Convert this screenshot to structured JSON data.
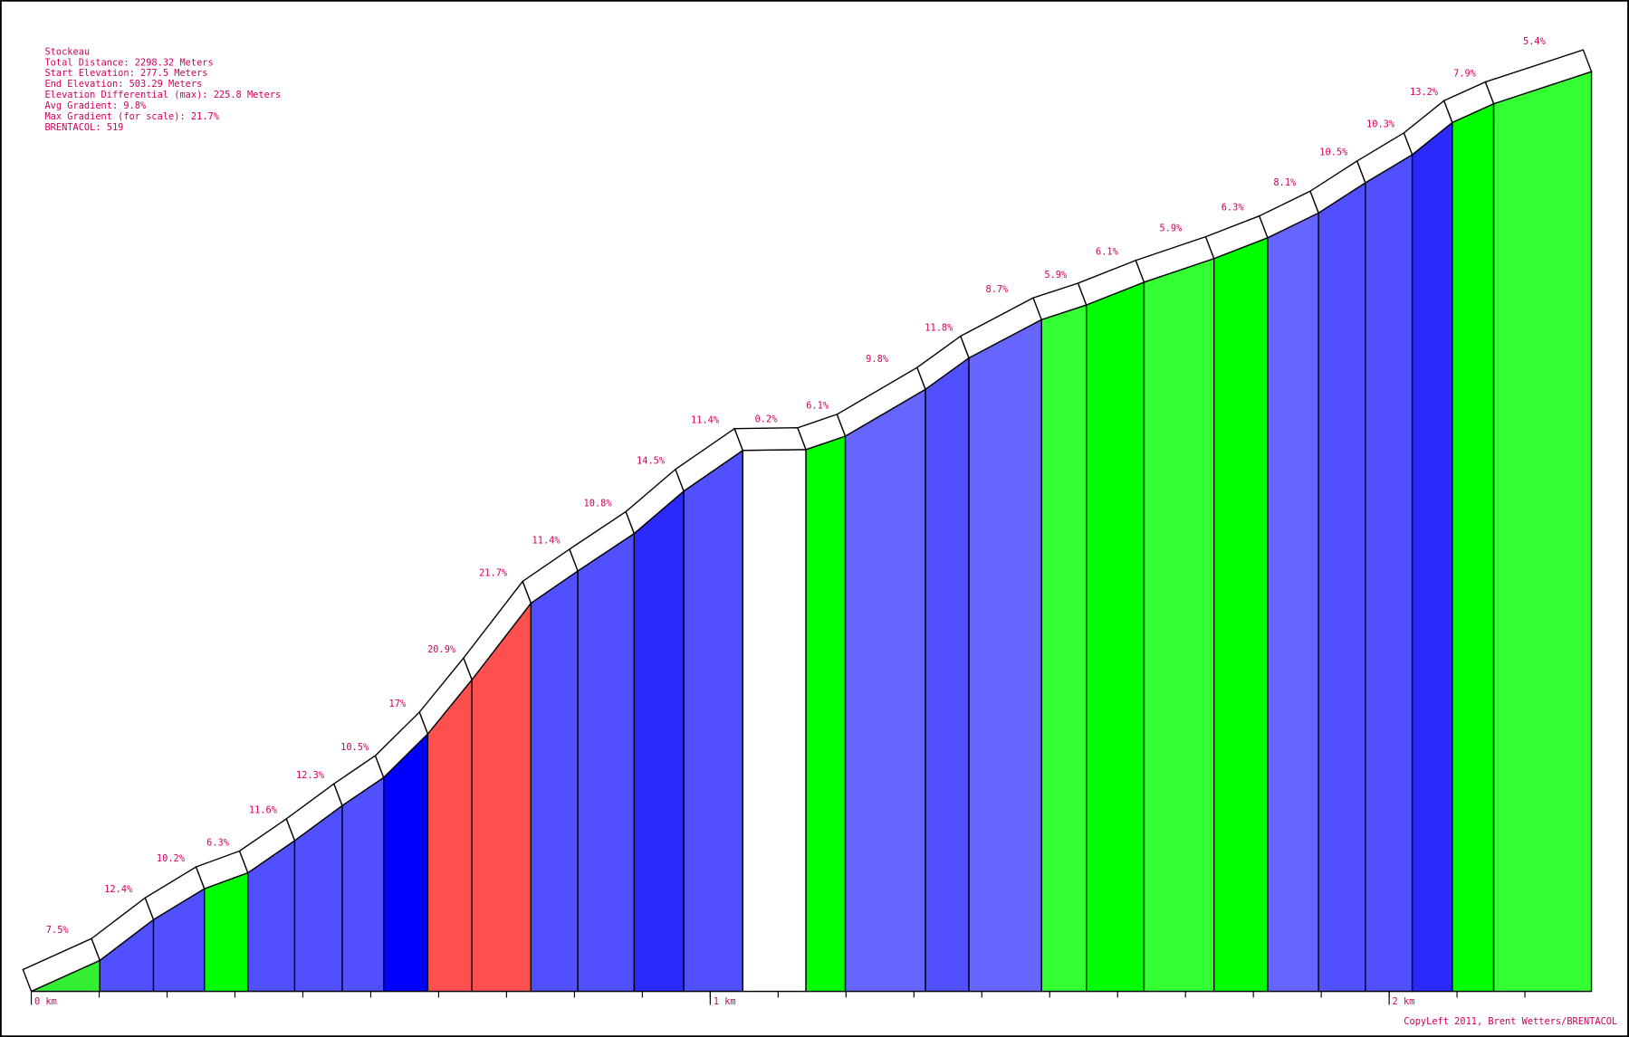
{
  "chart_data": {
    "type": "profile",
    "title": "Stockeau",
    "info": [
      "Total Distance: 2298.32 Meters",
      "Start Elevation: 277.5 Meters",
      "End Elevation: 503.29 Meters",
      "Elevation Differential (max): 225.8 Meters",
      "Avg Gradient: 9.8%",
      "Max Gradient (for scale): 21.7%",
      "BRENTACOL: 519"
    ],
    "x": [
      0,
      0.101,
      0.18,
      0.255,
      0.319,
      0.388,
      0.458,
      0.519,
      0.584,
      0.649,
      0.736,
      0.805,
      0.888,
      0.961,
      1.048,
      1.141,
      1.199,
      1.317,
      1.381,
      1.488,
      1.554,
      1.639,
      1.742,
      1.821,
      1.896,
      1.965,
      2.034,
      2.093,
      2.154,
      2.298
    ],
    "values": [
      277.5,
      285.1,
      295.1,
      302.7,
      306.6,
      314.5,
      323.1,
      330.0,
      340.7,
      354.0,
      372.8,
      380.7,
      389.9,
      400.3,
      410.3,
      410.5,
      413.8,
      425.3,
      433.0,
      442.4,
      446.0,
      451.6,
      457.4,
      462.5,
      468.6,
      476.0,
      482.9,
      490.8,
      495.4,
      503.29
    ],
    "gradient_labels": [
      "7.5%",
      "12.4%",
      "10.2%",
      "6.3%",
      "11.6%",
      "12.3%",
      "10.5%",
      "17%",
      "20.9%",
      "21.7%",
      "11.4%",
      "10.8%",
      "14.5%",
      "11.4%",
      "0.2%",
      "6.1%",
      "9.8%",
      "11.8%",
      "8.7%",
      "5.9%",
      "6.1%",
      "5.9%",
      "6.3%",
      "8.1%",
      "10.5%",
      "10.3%",
      "13.2%",
      "7.9%",
      "5.4%"
    ],
    "colors": [
      "#33ee33",
      "#5050ff",
      "#5050ff",
      "#00ff00",
      "#5050ff",
      "#5050ff",
      "#5050ff",
      "#0000ff",
      "#ff5050",
      "#ff5050",
      "#5050ff",
      "#5050ff",
      "#2a2aff",
      "#5050ff",
      "#ffffff",
      "#00ff00",
      "#6666ff",
      "#5050ff",
      "#6666ff",
      "#33ff33",
      "#00ff00",
      "#33ff33",
      "#00ff00",
      "#6666ff",
      "#5050ff",
      "#5050ff",
      "#2a2aff",
      "#00ff00",
      "#33ff33"
    ],
    "xlim": [
      0,
      2.298
    ],
    "xticks": [
      {
        "value": 0,
        "label": "0 km"
      },
      {
        "value": 1,
        "label": "1 km"
      },
      {
        "value": 2,
        "label": "2 km"
      }
    ],
    "ylim": [
      277.5,
      503.29
    ],
    "footer": "CopyLeft 2011, Brent Wetters/BRENTACOL"
  }
}
